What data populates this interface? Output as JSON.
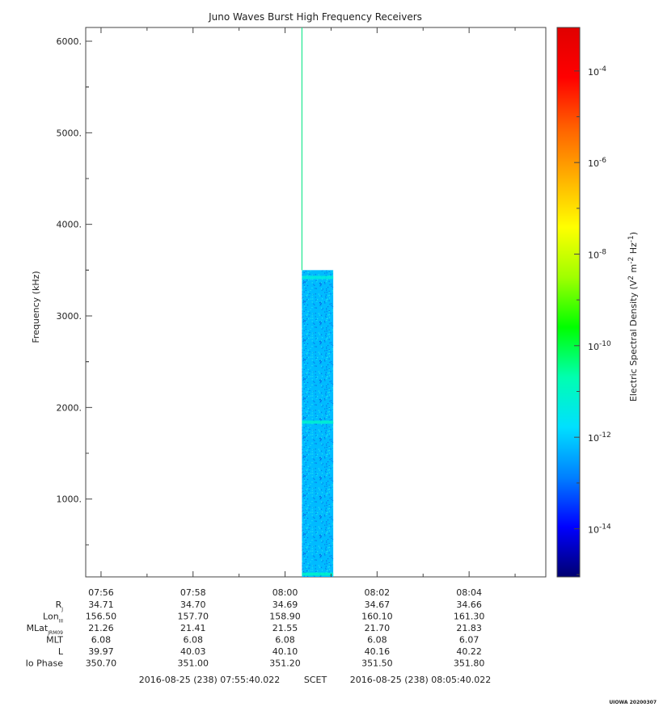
{
  "chart_data": {
    "type": "heatmap",
    "title": "Juno Waves Burst High Frequency Receivers",
    "ylabel": "Frequency (kHz)",
    "ylim": [
      150,
      6150
    ],
    "y_ticks": [
      {
        "value": 1000,
        "label": "1000."
      },
      {
        "value": 2000,
        "label": "2000."
      },
      {
        "value": 3000,
        "label": "3000."
      },
      {
        "value": 4000,
        "label": "4000."
      },
      {
        "value": 5000,
        "label": "5000."
      },
      {
        "value": 6000,
        "label": "6000."
      }
    ],
    "x_range_minutes": [
      0,
      10
    ],
    "x_ticks": [
      {
        "minute": 0.333,
        "label": "07:56"
      },
      {
        "minute": 2.333,
        "label": "07:58"
      },
      {
        "minute": 4.333,
        "label": "08:00"
      },
      {
        "minute": 6.333,
        "label": "08:02"
      },
      {
        "minute": 8.333,
        "label": "08:04"
      }
    ],
    "x_minor_minutes": [
      -0.667,
      1.333,
      3.333,
      5.333,
      7.333,
      9.333
    ],
    "burst": {
      "start_minute": 4.7,
      "end_minute": 5.38,
      "freq_min": 150,
      "freq_max": 3500,
      "log_density": -12.2,
      "bands": [
        {
          "freq": 3420,
          "log_density": -11.3
        },
        {
          "freq": 1840,
          "log_density": -11.1
        },
        {
          "freq": 180,
          "log_density": -11.0
        }
      ],
      "spike_minute": 4.7,
      "spike_freq_max": 6150
    },
    "colorbar": {
      "label_parts": [
        "Electric Spectral Density (V",
        "2",
        " m",
        "-2",
        " Hz",
        "-1",
        ")"
      ],
      "log_min": -15.05,
      "log_max": -3.05,
      "ticks": [
        {
          "exp": -4,
          "base": "10",
          "sup": "-4"
        },
        {
          "exp": -6,
          "base": "10",
          "sup": "-6"
        },
        {
          "exp": -8,
          "base": "10",
          "sup": "-8"
        },
        {
          "exp": -10,
          "base": "10",
          "sup": "-10"
        },
        {
          "exp": -12,
          "base": "10",
          "sup": "-12"
        },
        {
          "exp": -14,
          "base": "10",
          "sup": "-14"
        }
      ],
      "colors": [
        "#000070",
        "#0000ff",
        "#0080ff",
        "#00e0ff",
        "#00ffb0",
        "#00ff00",
        "#a0ff00",
        "#ffff00",
        "#ffb000",
        "#ff6000",
        "#ff0000",
        "#e00000"
      ]
    },
    "ephemeris": {
      "rows": [
        {
          "label": "R",
          "sub": "J",
          "values": [
            "34.71",
            "34.70",
            "34.69",
            "34.67",
            "34.66"
          ]
        },
        {
          "label": "Lon",
          "sub": "III",
          "values": [
            "156.50",
            "157.70",
            "158.90",
            "160.10",
            "161.30"
          ]
        },
        {
          "label": "MLat",
          "sub": "JRM09",
          "values": [
            "21.26",
            "21.41",
            "21.55",
            "21.70",
            "21.83"
          ]
        },
        {
          "label": "MLT",
          "sub": "",
          "values": [
            "6.08",
            "6.08",
            "6.08",
            "6.08",
            "6.07"
          ]
        },
        {
          "label": "L",
          "sub": "",
          "values": [
            "39.97",
            "40.03",
            "40.10",
            "40.16",
            "40.22"
          ]
        },
        {
          "label": "Io Phase",
          "sub": "",
          "values": [
            "350.70",
            "351.00",
            "351.20",
            "351.50",
            "351.80"
          ]
        }
      ]
    },
    "time_range": {
      "start": "2016-08-25 (238) 07:55:40.022",
      "scet": "SCET",
      "end": "2016-08-25 (238) 08:05:40.022"
    },
    "footer": "UIOWA 20200307"
  }
}
